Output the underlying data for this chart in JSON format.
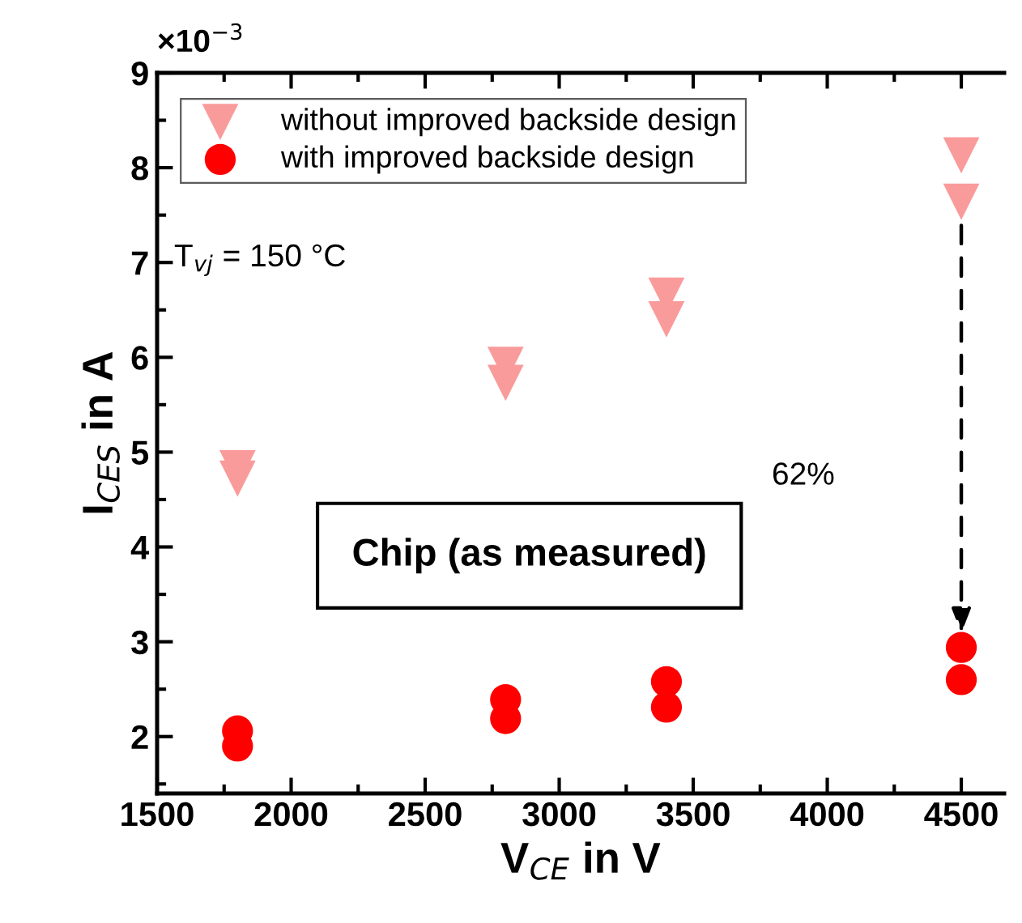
{
  "chart_data": {
    "type": "scatter",
    "xlabel": "V$_{CE}$ in V",
    "ylabel": "I$_{CES}$ in A",
    "x": [
      1800,
      1800,
      2800,
      2800,
      3400,
      3400,
      4500,
      4500
    ],
    "series": [
      {
        "name": "without improved backside design",
        "color": "#fa9b9b",
        "marker": "triangle",
        "values": [
          4.83,
          4.72,
          5.92,
          5.73,
          6.65,
          6.4,
          8.13,
          7.64
        ]
      },
      {
        "name": "with improved backside design",
        "color": "#ff0000",
        "marker": "circle",
        "values": [
          2.06,
          1.9,
          2.39,
          2.19,
          2.58,
          2.31,
          2.94,
          2.6
        ]
      }
    ],
    "xlim": [
      1500,
      4660
    ],
    "xticks": [
      1500,
      2000,
      2500,
      3000,
      3500,
      4000,
      4500
    ],
    "ylim": [
      1.4,
      9
    ],
    "yticks": [
      2,
      3,
      4,
      5,
      6,
      7,
      8,
      9
    ],
    "annotations": [
      "×10$^{−3}$",
      "T$_{vj}$ = 150 °C",
      "Chip (as measured)",
      "62%"
    ],
    "grid": false,
    "legend": "top left"
  }
}
